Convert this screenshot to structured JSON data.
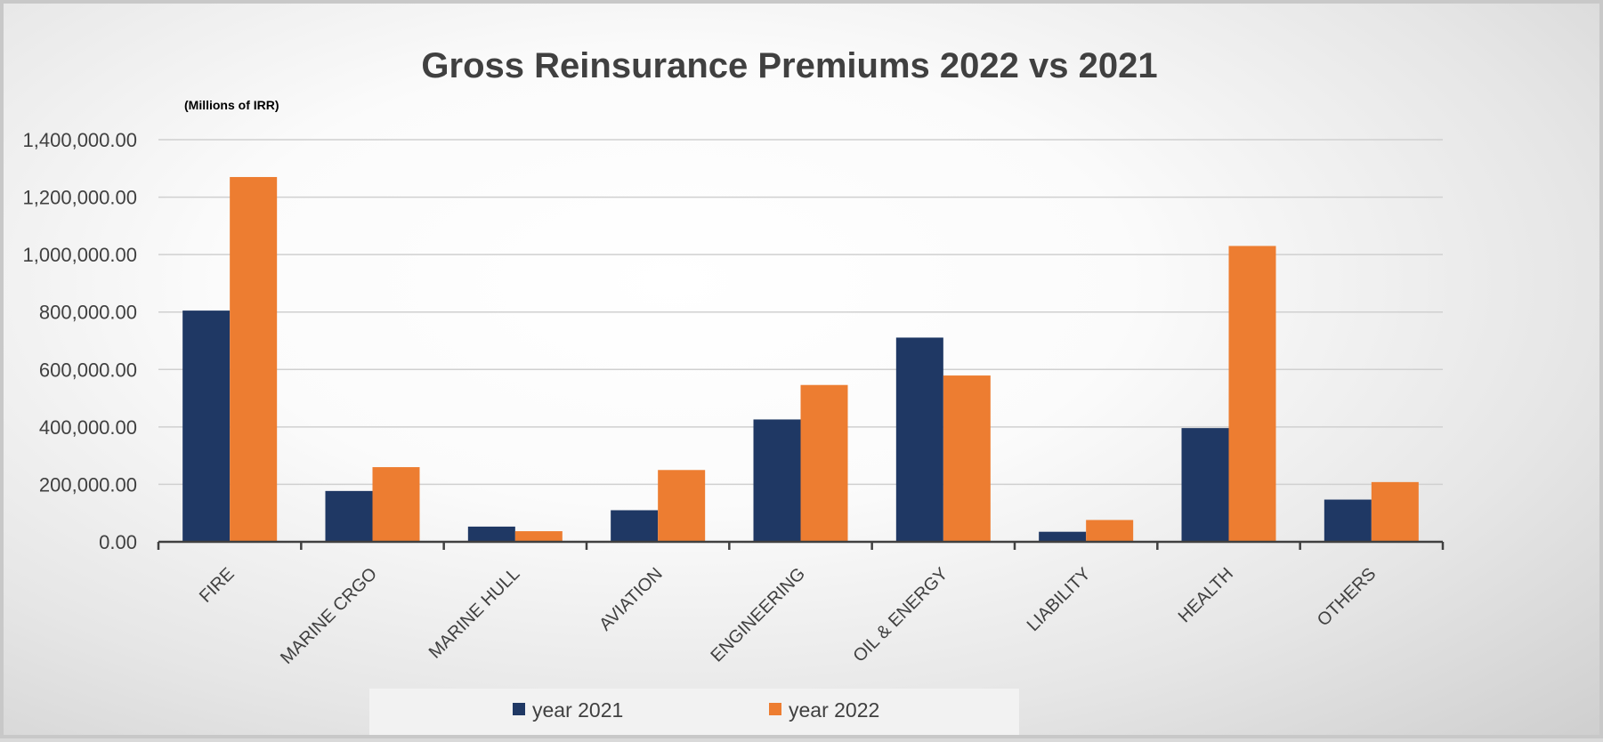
{
  "chart_data": {
    "type": "bar",
    "title": "Gross Reinsurance Premiums 2022 vs 2021",
    "unit_label": "(Millions of IRR)",
    "categories": [
      "FIRE",
      "MARINE CRGO",
      "MARINE HULL",
      "AVIATION",
      "ENGINEERING",
      "OIL & ENERGY",
      "LIABILITY",
      "HEALTH",
      "OTHERS"
    ],
    "series": [
      {
        "name": "year 2021",
        "color": "#1f3864",
        "values": [
          805000,
          177000,
          53000,
          110000,
          426000,
          711000,
          35000,
          396000,
          147000
        ]
      },
      {
        "name": "year 2022",
        "color": "#ed7d31",
        "values": [
          1270000,
          260000,
          37000,
          250000,
          546000,
          579000,
          76000,
          1030000,
          208000
        ]
      }
    ],
    "ylim": [
      0,
      1400000
    ],
    "yticks": [
      0,
      200000,
      400000,
      600000,
      800000,
      1000000,
      1200000,
      1400000
    ],
    "ytick_labels": [
      "0.00",
      "200,000.00",
      "400,000.00",
      "600,000.00",
      "800,000.00",
      "1,000,000.00",
      "1,200,000.00",
      "1,400,000.00"
    ],
    "xlabel": "",
    "ylabel": "",
    "grid": true,
    "legend_position": "bottom"
  }
}
